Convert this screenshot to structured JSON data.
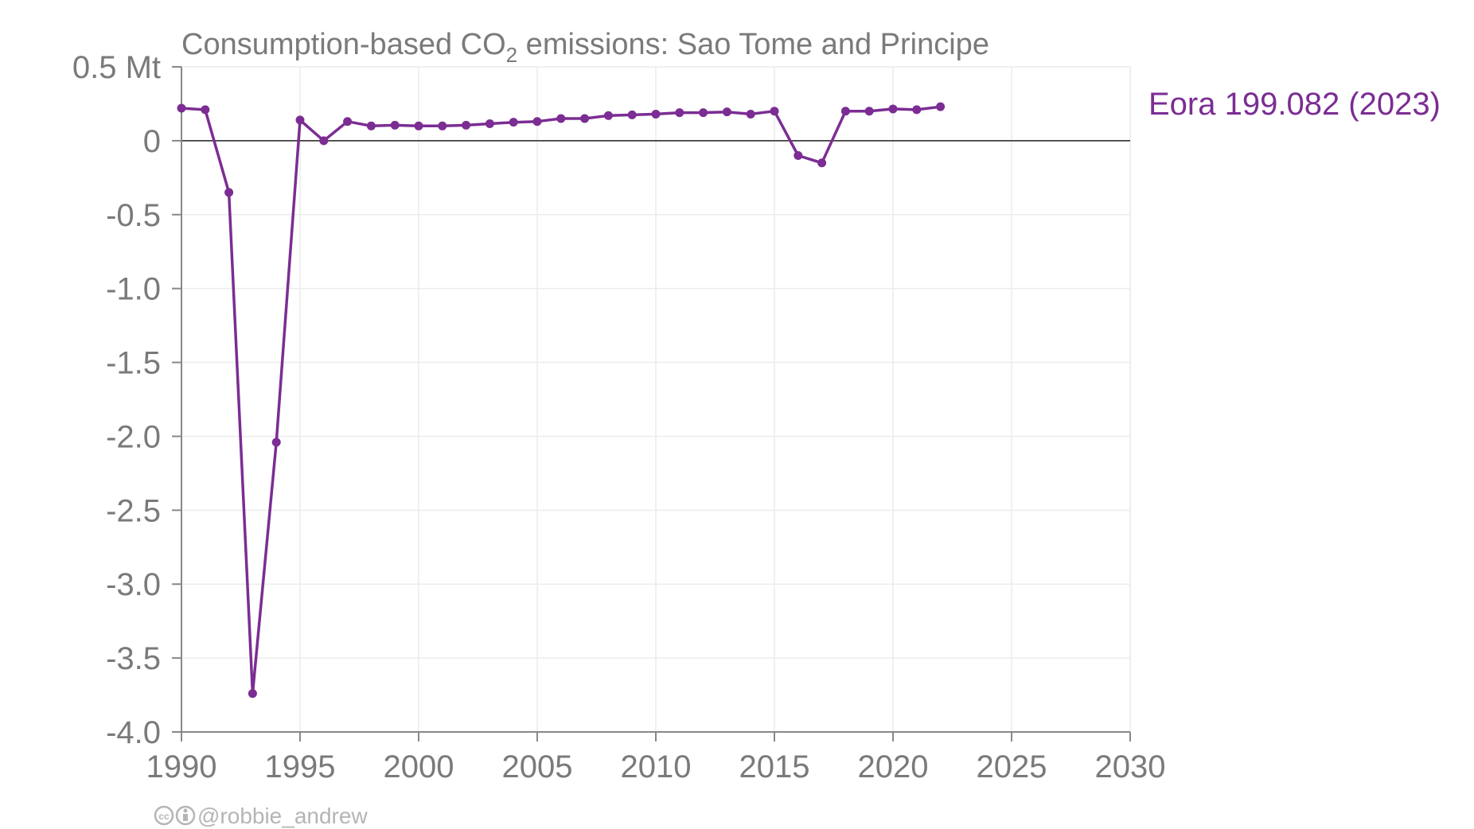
{
  "chart_data": {
    "type": "line",
    "title_prefix": "Consumption-based CO",
    "title_subscript": "2",
    "title_suffix": " emissions: Sao Tome and Principe",
    "y_unit_label": "0.5 Mt",
    "xlim": [
      1990,
      2030
    ],
    "ylim": [
      -4.0,
      0.5
    ],
    "x_ticks": [
      "1990",
      "1995",
      "2000",
      "2005",
      "2010",
      "2015",
      "2020",
      "2025",
      "2030"
    ],
    "y_ticks": [
      {
        "value": 0.5,
        "label": "0.5 Mt"
      },
      {
        "value": 0,
        "label": "0"
      },
      {
        "value": -0.5,
        "label": "-0.5"
      },
      {
        "value": -1.0,
        "label": "-1.0"
      },
      {
        "value": -1.5,
        "label": "-1.5"
      },
      {
        "value": -2.0,
        "label": "-2.0"
      },
      {
        "value": -2.5,
        "label": "-2.5"
      },
      {
        "value": -3.0,
        "label": "-3.0"
      },
      {
        "value": -3.5,
        "label": "-3.5"
      },
      {
        "value": -4.0,
        "label": "-4.0"
      }
    ],
    "grid": true,
    "series": [
      {
        "name": "Eora",
        "label": "Eora 199.082 (2023)",
        "color": "#7b2d93",
        "x": [
          1990,
          1991,
          1992,
          1993,
          1994,
          1995,
          1996,
          1997,
          1998,
          1999,
          2000,
          2001,
          2002,
          2003,
          2004,
          2005,
          2006,
          2007,
          2008,
          2009,
          2010,
          2011,
          2012,
          2013,
          2014,
          2015,
          2016,
          2017,
          2018,
          2019,
          2020,
          2021,
          2022
        ],
        "y": [
          0.22,
          0.21,
          -0.35,
          -3.74,
          -2.04,
          0.14,
          0.0,
          0.13,
          0.1,
          0.105,
          0.1,
          0.1,
          0.105,
          0.115,
          0.125,
          0.13,
          0.15,
          0.15,
          0.17,
          0.175,
          0.18,
          0.19,
          0.19,
          0.195,
          0.18,
          0.2,
          -0.1,
          -0.15,
          0.2,
          0.2,
          0.215,
          0.21,
          0.23
        ]
      }
    ]
  },
  "credit": {
    "cc_icon": "cc-icon",
    "by_icon": "attribution-icon",
    "handle": "@robbie_andrew"
  }
}
